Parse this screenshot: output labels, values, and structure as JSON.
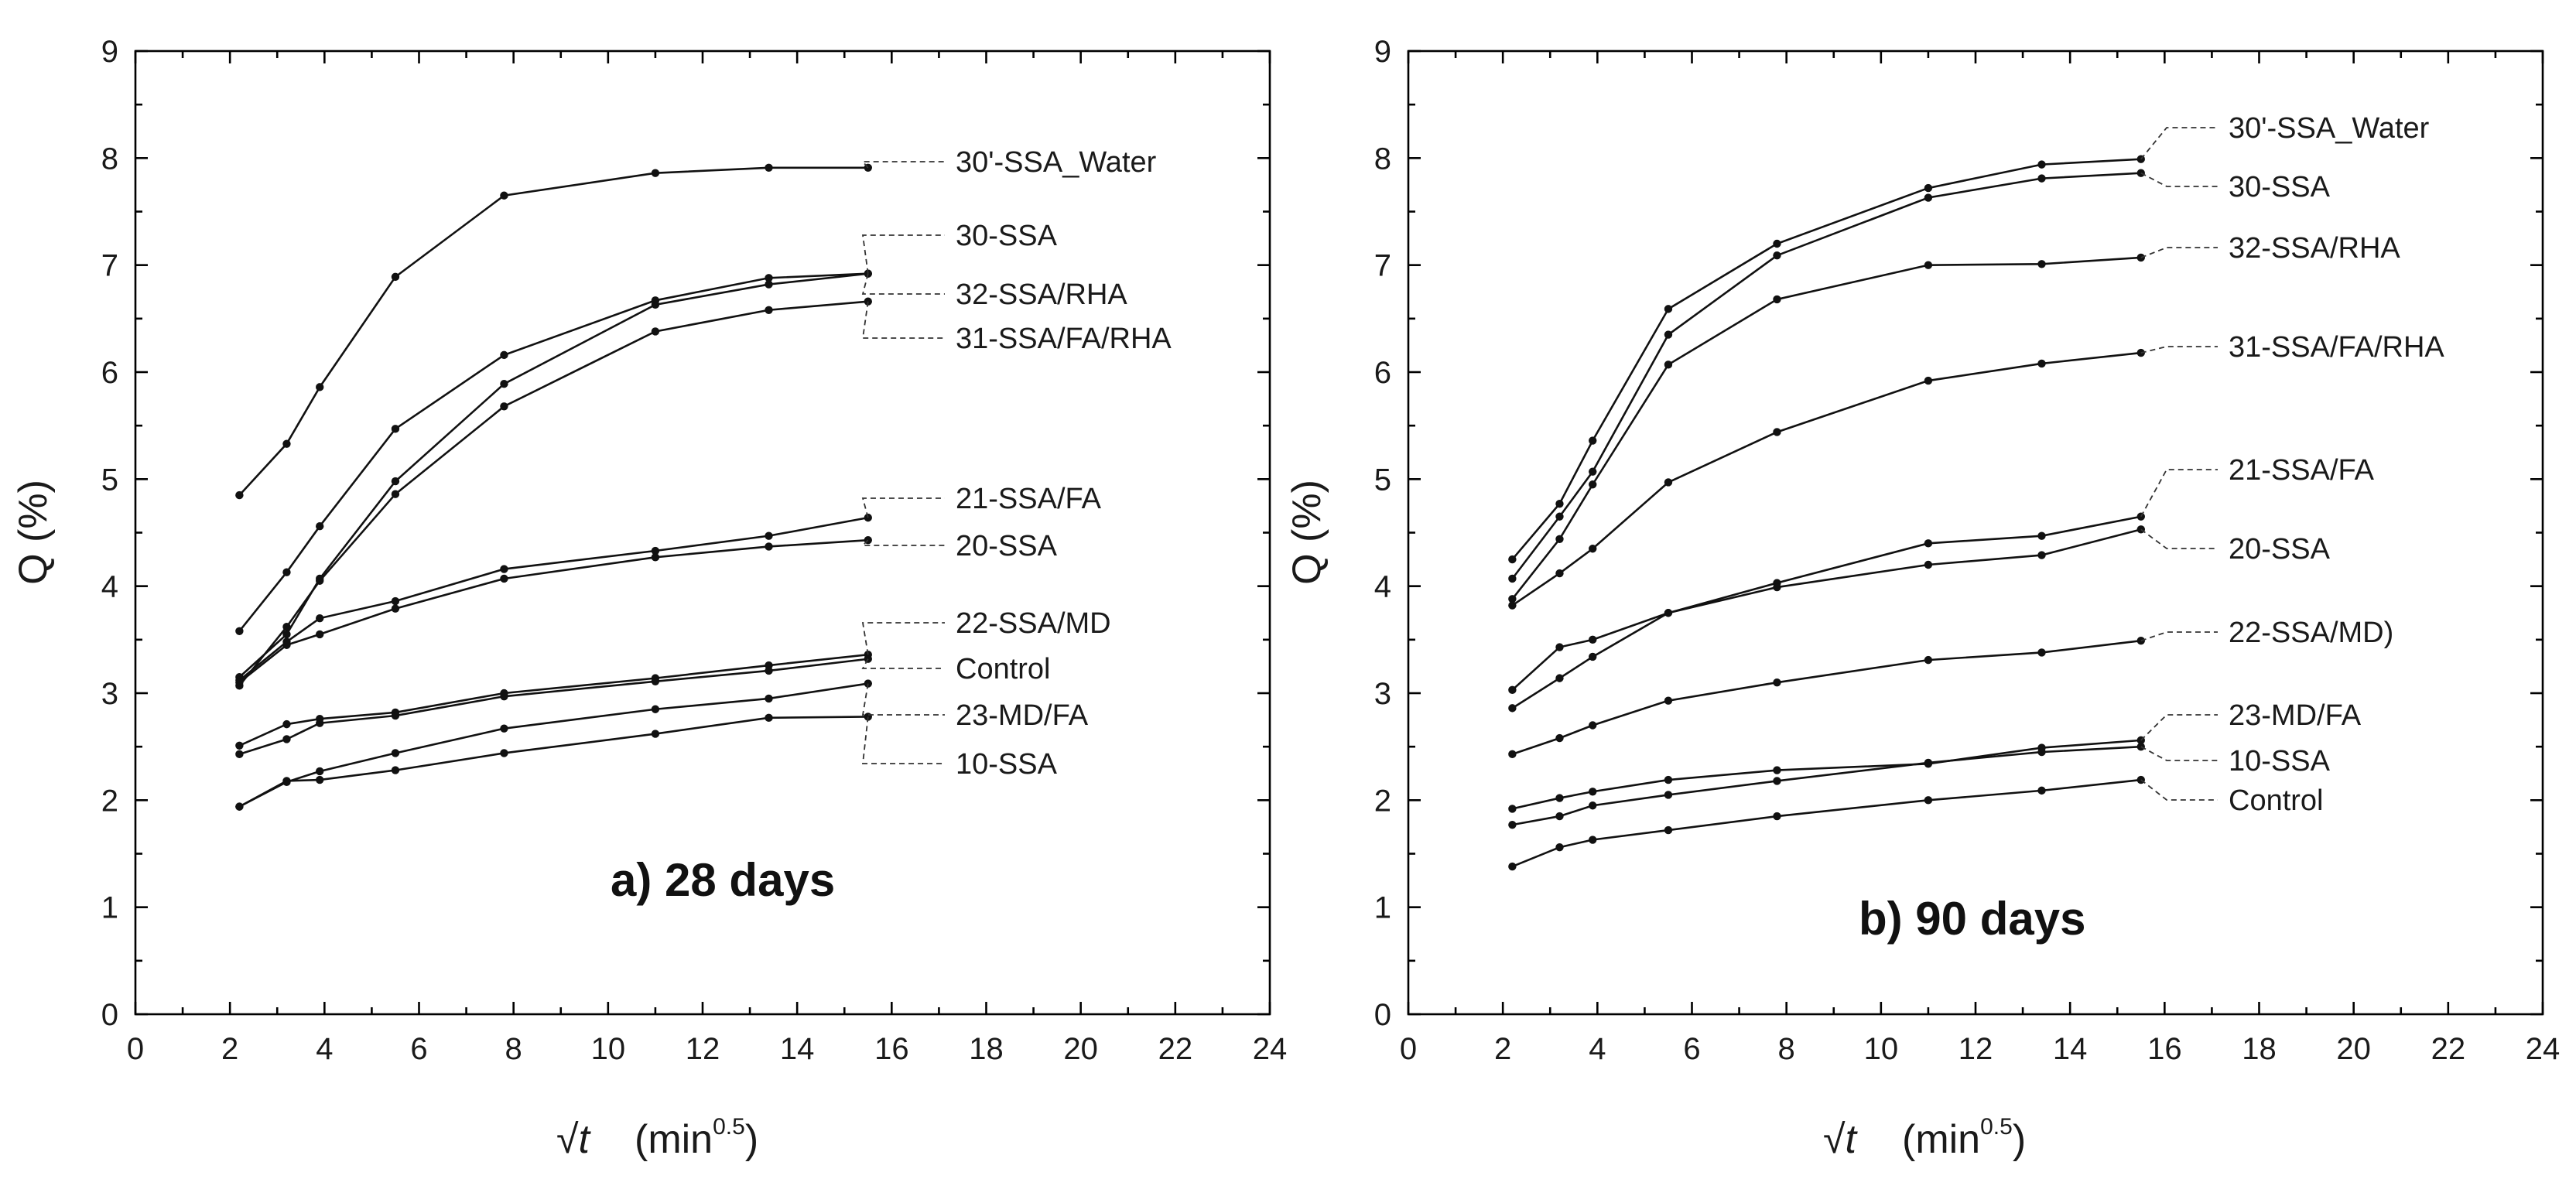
{
  "chart_data": [
    {
      "type": "line",
      "title": "a) 28 days",
      "xlabel": "(min",
      "xlabel_symbol": "√t",
      "xlabel_sup": "0.5",
      "xlabel_close": ")",
      "ylabel": "Q (%)",
      "xlim": [
        0,
        24
      ],
      "ylim": [
        0,
        9
      ],
      "xticks": [
        "0",
        "2",
        "4",
        "6",
        "8",
        "10",
        "12",
        "14",
        "16",
        "18",
        "20",
        "22",
        "24"
      ],
      "yticks": [
        "0",
        "1",
        "2",
        "3",
        "4",
        "5",
        "6",
        "7",
        "8",
        "9"
      ],
      "x": [
        2.2,
        3.2,
        3.9,
        5.5,
        7.8,
        11.0,
        13.4,
        15.5
      ],
      "series": [
        {
          "name": "30'-SSA_Water",
          "values": [
            4.85,
            5.33,
            5.86,
            6.89,
            7.65,
            7.86,
            7.91,
            7.91
          ]
        },
        {
          "name": "30-SSA",
          "values": [
            3.58,
            4.13,
            4.56,
            5.47,
            6.16,
            6.67,
            6.88,
            6.92
          ]
        },
        {
          "name": "32-SSA/RHA",
          "values": [
            3.15,
            3.55,
            4.07,
            4.98,
            5.89,
            6.63,
            6.82,
            6.92
          ]
        },
        {
          "name": "31-SSA/FA/RHA",
          "values": [
            3.07,
            3.62,
            4.05,
            4.86,
            5.68,
            6.38,
            6.58,
            6.66
          ]
        },
        {
          "name": "21-SSA/FA",
          "values": [
            3.12,
            3.48,
            3.7,
            3.86,
            4.16,
            4.33,
            4.47,
            4.64
          ]
        },
        {
          "name": "20-SSA",
          "values": [
            3.1,
            3.45,
            3.55,
            3.79,
            4.07,
            4.27,
            4.37,
            4.43
          ]
        },
        {
          "name": "22-SSA/MD",
          "values": [
            2.51,
            2.71,
            2.76,
            2.82,
            3.0,
            3.14,
            3.26,
            3.36
          ]
        },
        {
          "name": "Control",
          "values": [
            2.43,
            2.57,
            2.72,
            2.79,
            2.97,
            3.11,
            3.21,
            3.32
          ]
        },
        {
          "name": "23-MD/FA",
          "values": [
            1.94,
            2.17,
            2.27,
            2.44,
            2.67,
            2.85,
            2.95,
            3.09
          ]
        },
        {
          "name": "10-SSA",
          "values": [
            1.94,
            2.18,
            2.19,
            2.28,
            2.44,
            2.62,
            2.77,
            2.78
          ]
        }
      ]
    },
    {
      "type": "line",
      "title": "b) 90 days",
      "xlabel": "(min",
      "xlabel_symbol": "√t",
      "xlabel_sup": "0.5",
      "xlabel_close": ")",
      "ylabel": "Q (%)",
      "xlim": [
        0,
        24
      ],
      "ylim": [
        0,
        9
      ],
      "xticks": [
        "0",
        "2",
        "4",
        "6",
        "8",
        "10",
        "12",
        "14",
        "16",
        "18",
        "20",
        "22",
        "24"
      ],
      "yticks": [
        "0",
        "1",
        "2",
        "3",
        "4",
        "5",
        "6",
        "7",
        "8",
        "9"
      ],
      "x": [
        2.2,
        3.2,
        3.9,
        5.5,
        7.8,
        11.0,
        13.4,
        15.5
      ],
      "series": [
        {
          "name": "30'-SSA_Water",
          "values": [
            4.25,
            4.77,
            5.36,
            6.59,
            7.2,
            7.72,
            7.94,
            7.99
          ]
        },
        {
          "name": "30-SSA",
          "values": [
            4.07,
            4.65,
            5.07,
            6.35,
            7.09,
            7.63,
            7.81,
            7.86
          ]
        },
        {
          "name": "32-SSA/RHA",
          "values": [
            3.88,
            4.44,
            4.95,
            6.07,
            6.68,
            7.0,
            7.01,
            7.07
          ]
        },
        {
          "name": "31-SSA/FA/RHA",
          "values": [
            3.82,
            4.12,
            4.35,
            4.97,
            5.44,
            5.92,
            6.08,
            6.18
          ]
        },
        {
          "name": "21-SSA/FA",
          "values": [
            3.03,
            3.43,
            3.5,
            3.75,
            4.03,
            4.4,
            4.47,
            4.65
          ]
        },
        {
          "name": "20-SSA",
          "values": [
            2.86,
            3.14,
            3.34,
            3.75,
            3.99,
            4.2,
            4.29,
            4.53
          ]
        },
        {
          "name": "22-SSA/MD)",
          "values": [
            2.43,
            2.58,
            2.7,
            2.93,
            3.1,
            3.31,
            3.38,
            3.49
          ]
        },
        {
          "name": "23-MD/FA",
          "values": [
            1.92,
            2.02,
            2.08,
            2.19,
            2.28,
            2.34,
            2.49,
            2.56
          ]
        },
        {
          "name": "10-SSA",
          "values": [
            1.77,
            1.85,
            1.95,
            2.05,
            2.18,
            2.35,
            2.45,
            2.5
          ]
        },
        {
          "name": "Control",
          "values": [
            1.38,
            1.56,
            1.63,
            1.72,
            1.85,
            2.0,
            2.09,
            2.19
          ]
        }
      ]
    }
  ]
}
